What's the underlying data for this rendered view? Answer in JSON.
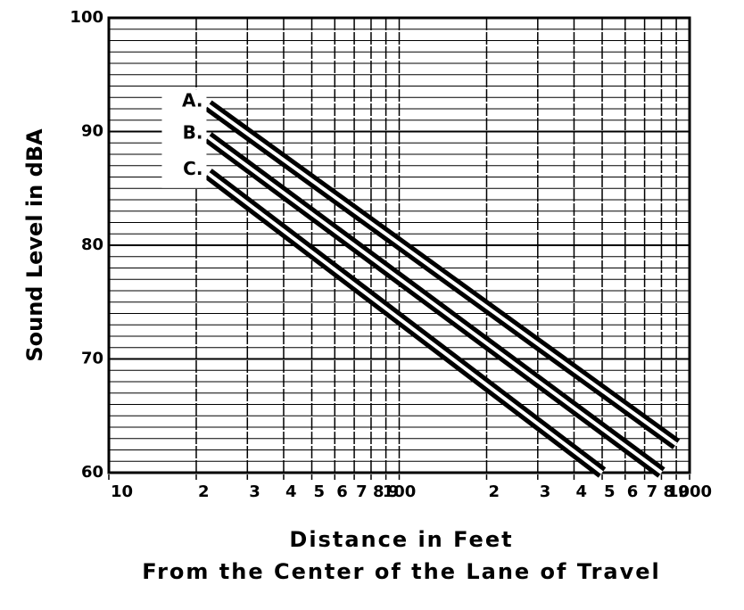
{
  "chart_data": {
    "type": "line",
    "ylabel": "Sound Level in dBA",
    "xlabel": [
      "Distance in Feet",
      "From the Center of the Lane of Travel"
    ],
    "log_x": true,
    "grid": true,
    "xlim": [
      10,
      1000
    ],
    "xticks": [
      {
        "value": 10,
        "label": "10"
      },
      {
        "value": 20,
        "label": "2"
      },
      {
        "value": 30,
        "label": "3"
      },
      {
        "value": 40,
        "label": "4"
      },
      {
        "value": 50,
        "label": "5"
      },
      {
        "value": 60,
        "label": "6"
      },
      {
        "value": 70,
        "label": "7"
      },
      {
        "value": 80,
        "label": "8"
      },
      {
        "value": 90,
        "label": "9"
      },
      100,
      {
        "value": 200,
        "label": "2"
      },
      {
        "value": 300,
        "label": "3"
      },
      {
        "value": 400,
        "label": "4"
      },
      {
        "value": 500,
        "label": "5"
      },
      {
        "value": 600,
        "label": "6"
      },
      {
        "value": 700,
        "label": "7"
      },
      {
        "value": 800,
        "label": "8"
      },
      {
        "value": 900,
        "label": "9"
      },
      1000
    ],
    "ylim": [
      60,
      100
    ],
    "yticks": [
      60,
      70,
      80,
      90,
      100
    ],
    "series": [
      {
        "name": "A.",
        "color": "#000000",
        "x": [
          22,
          900
        ],
        "values": [
          92.3,
          62.5
        ]
      },
      {
        "name": "B.",
        "color": "#000000",
        "x": [
          22,
          800
        ],
        "values": [
          89.5,
          60
        ]
      },
      {
        "name": "C.",
        "color": "#000000",
        "x": [
          22,
          500
        ],
        "values": [
          86.3,
          60
        ]
      }
    ]
  }
}
